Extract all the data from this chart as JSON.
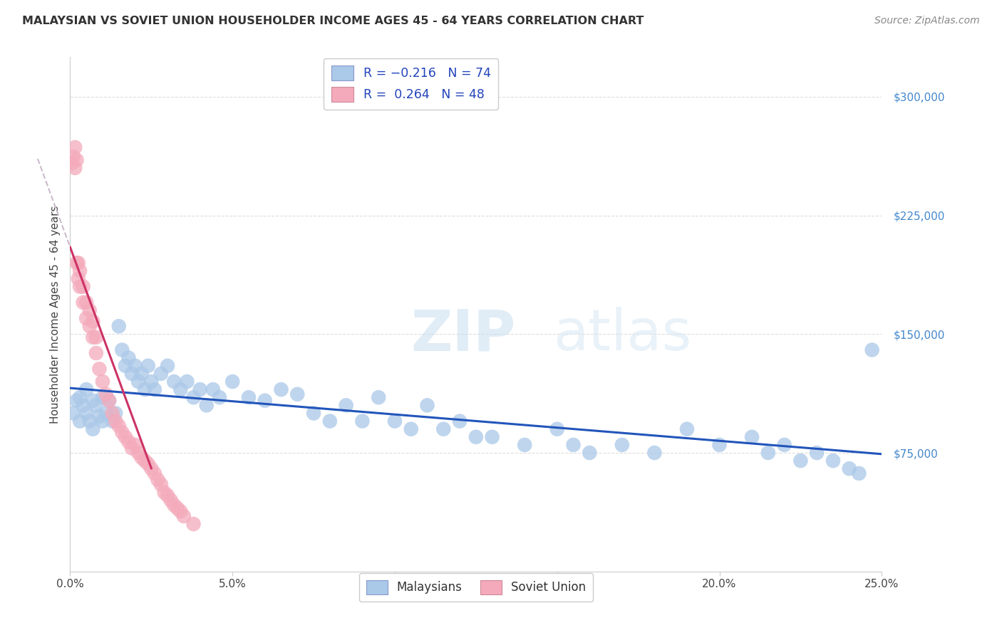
{
  "title": "MALAYSIAN VS SOVIET UNION HOUSEHOLDER INCOME AGES 45 - 64 YEARS CORRELATION CHART",
  "source": "Source: ZipAtlas.com",
  "ylabel": "Householder Income Ages 45 - 64 years",
  "xlim": [
    0.0,
    0.25
  ],
  "ylim": [
    0,
    325000
  ],
  "xticks": [
    0.0,
    0.05,
    0.1,
    0.15,
    0.2,
    0.25
  ],
  "ytick_labels": [
    "$75,000",
    "$150,000",
    "$225,000",
    "$300,000"
  ],
  "ytick_values": [
    75000,
    150000,
    225000,
    300000
  ],
  "blue_R": -0.216,
  "blue_N": 74,
  "pink_R": 0.264,
  "pink_N": 48,
  "blue_color": "#aac8e8",
  "pink_color": "#f4aabb",
  "blue_line_color": "#2255bb",
  "pink_line_color": "#cc3366",
  "dash_color": "#ccbbcc",
  "bg_color": "#ffffff",
  "grid_color": "#dddddd",
  "blue_scatter_x": [
    0.001,
    0.002,
    0.003,
    0.003,
    0.004,
    0.005,
    0.005,
    0.006,
    0.007,
    0.007,
    0.008,
    0.009,
    0.01,
    0.01,
    0.011,
    0.012,
    0.013,
    0.014,
    0.015,
    0.016,
    0.017,
    0.018,
    0.019,
    0.02,
    0.021,
    0.022,
    0.023,
    0.024,
    0.025,
    0.026,
    0.028,
    0.03,
    0.032,
    0.034,
    0.036,
    0.038,
    0.04,
    0.042,
    0.044,
    0.046,
    0.05,
    0.055,
    0.06,
    0.065,
    0.07,
    0.075,
    0.08,
    0.085,
    0.09,
    0.095,
    0.1,
    0.105,
    0.11,
    0.115,
    0.12,
    0.125,
    0.13,
    0.14,
    0.15,
    0.155,
    0.16,
    0.17,
    0.18,
    0.19,
    0.2,
    0.21,
    0.215,
    0.22,
    0.225,
    0.23,
    0.235,
    0.24,
    0.243,
    0.247
  ],
  "blue_scatter_y": [
    100000,
    108000,
    95000,
    110000,
    105000,
    100000,
    115000,
    95000,
    108000,
    90000,
    105000,
    98000,
    110000,
    95000,
    100000,
    108000,
    95000,
    100000,
    155000,
    140000,
    130000,
    135000,
    125000,
    130000,
    120000,
    125000,
    115000,
    130000,
    120000,
    115000,
    125000,
    130000,
    120000,
    115000,
    120000,
    110000,
    115000,
    105000,
    115000,
    110000,
    120000,
    110000,
    108000,
    115000,
    112000,
    100000,
    95000,
    105000,
    95000,
    110000,
    95000,
    90000,
    105000,
    90000,
    95000,
    85000,
    85000,
    80000,
    90000,
    80000,
    75000,
    80000,
    75000,
    90000,
    80000,
    85000,
    75000,
    80000,
    70000,
    75000,
    70000,
    65000,
    62000,
    140000
  ],
  "pink_scatter_x": [
    0.0005,
    0.001,
    0.0015,
    0.0015,
    0.002,
    0.002,
    0.0025,
    0.0025,
    0.003,
    0.003,
    0.004,
    0.004,
    0.005,
    0.005,
    0.006,
    0.006,
    0.007,
    0.007,
    0.008,
    0.008,
    0.009,
    0.01,
    0.011,
    0.012,
    0.013,
    0.014,
    0.015,
    0.016,
    0.017,
    0.018,
    0.019,
    0.02,
    0.021,
    0.022,
    0.023,
    0.024,
    0.025,
    0.026,
    0.027,
    0.028,
    0.029,
    0.03,
    0.031,
    0.032,
    0.033,
    0.034,
    0.035,
    0.038
  ],
  "pink_scatter_y": [
    258000,
    262000,
    255000,
    268000,
    260000,
    195000,
    185000,
    195000,
    180000,
    190000,
    170000,
    180000,
    160000,
    170000,
    155000,
    165000,
    148000,
    158000,
    138000,
    148000,
    128000,
    120000,
    112000,
    108000,
    100000,
    95000,
    92000,
    88000,
    85000,
    82000,
    78000,
    80000,
    75000,
    72000,
    70000,
    68000,
    65000,
    62000,
    58000,
    55000,
    50000,
    48000,
    45000,
    42000,
    40000,
    38000,
    35000,
    30000
  ],
  "watermark_zip": "ZIP",
  "watermark_atlas": "atlas",
  "legend_top_label1": "R = −0.216   N = 74",
  "legend_top_label2": "R =  0.264   N = 48",
  "legend_bot_label1": "Malaysians",
  "legend_bot_label2": "Soviet Union"
}
